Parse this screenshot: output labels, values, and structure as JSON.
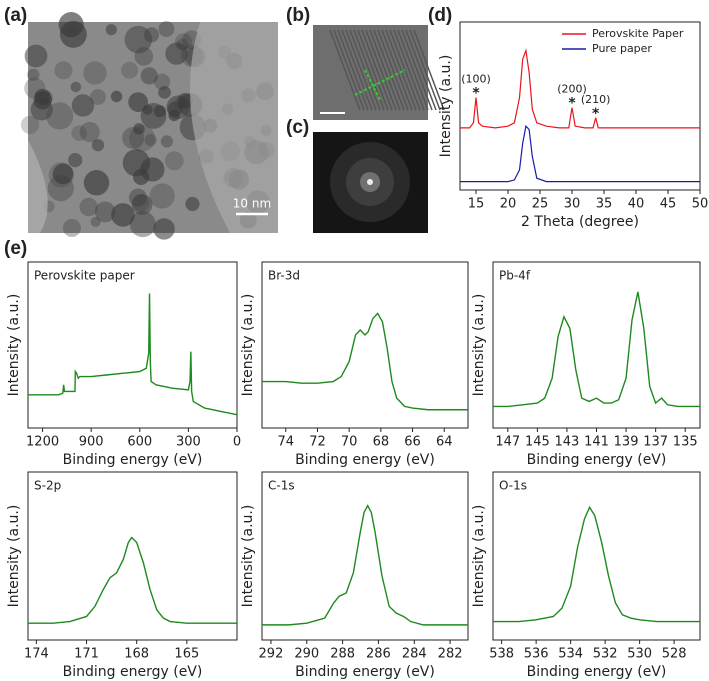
{
  "panel_labels": [
    "(a)",
    "(b)",
    "(c)",
    "(d)",
    "(e)"
  ],
  "scale_bar": "10 nm",
  "chart_data": [
    {
      "type": "line",
      "ylabel": "Intensity (a.u.)",
      "xlabel": "2 Theta (degree)",
      "xlim": [
        12.5,
        50
      ],
      "ylim": [
        0,
        100
      ],
      "xticks": [
        15,
        20,
        25,
        30,
        35,
        40,
        45,
        50
      ],
      "legend": "upper right",
      "x": [
        12.5,
        13,
        14,
        14.6,
        15,
        15.4,
        16,
        18,
        20,
        21,
        21.8,
        22.3,
        22.8,
        23.3,
        23.8,
        24.5,
        26,
        28,
        29.5,
        30,
        30.5,
        32,
        33.3,
        33.7,
        34.1,
        36,
        40,
        45,
        50
      ],
      "series": [
        {
          "name": "Perovskite Paper",
          "color": "#e8141c",
          "values": [
            37,
            37,
            37,
            40,
            55,
            40,
            38,
            37,
            38,
            40,
            55,
            78,
            83,
            70,
            48,
            40,
            38,
            37,
            37,
            49,
            38,
            37,
            37,
            43,
            37,
            37,
            37,
            37,
            37
          ]
        },
        {
          "name": "Pure paper",
          "color": "#1a1aa8",
          "values": [
            5,
            5,
            5,
            5,
            5,
            5,
            5,
            5,
            5,
            6,
            12,
            28,
            38,
            36,
            20,
            7,
            5,
            5,
            5,
            5,
            5,
            5,
            5,
            5,
            5,
            5,
            5,
            5,
            5
          ]
        }
      ],
      "annotations": [
        {
          "text": "(100)",
          "marker": "*",
          "x": 15,
          "y": 55
        },
        {
          "text": "(200)",
          "marker": "*",
          "x": 30,
          "y": 49
        },
        {
          "text": "(210)",
          "marker": "*",
          "x": 33.7,
          "y": 43
        }
      ]
    },
    {
      "type": "line",
      "title": "Perovskite paper",
      "ylabel": "Intensity (a.u.)",
      "xlabel": "Binding energy (eV)",
      "xlim": [
        1290,
        0
      ],
      "ylim": [
        0,
        100
      ],
      "xticks": [
        1200,
        900,
        600,
        300,
        0
      ],
      "color": "#1e8a1e",
      "x": [
        1290,
        1200,
        1100,
        1075,
        1070,
        1065,
        1000,
        998,
        990,
        980,
        970,
        900,
        800,
        700,
        600,
        560,
        545,
        540,
        535,
        530,
        500,
        400,
        300,
        290,
        285,
        280,
        270,
        200,
        150,
        100,
        50,
        0
      ],
      "values": [
        20,
        20,
        20,
        21,
        26,
        22,
        22,
        34,
        33,
        30,
        31,
        31,
        32,
        33,
        34,
        36,
        45,
        81,
        40,
        28,
        26,
        24,
        23,
        28,
        46,
        22,
        16,
        12,
        11,
        10,
        9,
        8
      ]
    },
    {
      "type": "line",
      "title": "Br-3d",
      "ylabel": "Intensity (a.u.)",
      "xlabel": "Binding energy (eV)",
      "xlim": [
        75.5,
        62.5
      ],
      "ylim": [
        0,
        100
      ],
      "xticks": [
        74,
        72,
        70,
        68,
        66,
        64
      ],
      "color": "#1e8a1e",
      "x": [
        75.5,
        74,
        73,
        72,
        71,
        70.5,
        70,
        69.6,
        69.3,
        69,
        68.8,
        68.5,
        68.2,
        67.9,
        67.6,
        67.3,
        67,
        66.5,
        66,
        65,
        64,
        62.5
      ],
      "values": [
        28,
        28,
        27,
        27,
        28,
        31,
        40,
        56,
        59,
        56,
        58,
        66,
        69,
        64,
        48,
        28,
        18,
        13,
        12,
        11,
        11,
        11
      ]
    },
    {
      "type": "line",
      "title": "Pb-4f",
      "ylabel": "Intensity (a.u.)",
      "xlabel": "Binding energy (eV)",
      "xlim": [
        148,
        134
      ],
      "ylim": [
        0,
        100
      ],
      "xticks": [
        147,
        145,
        143,
        141,
        139,
        137,
        135
      ],
      "color": "#1e8a1e",
      "x": [
        148,
        147,
        146,
        145,
        144.5,
        144,
        143.6,
        143.2,
        142.8,
        142.4,
        142,
        141.5,
        141,
        140.5,
        140,
        139.5,
        139,
        138.6,
        138.2,
        137.8,
        137.4,
        137,
        136.6,
        136.2,
        135.5,
        134
      ],
      "values": [
        13,
        13,
        14,
        15,
        18,
        30,
        55,
        67,
        60,
        35,
        18,
        16,
        18,
        15,
        15,
        17,
        30,
        65,
        82,
        60,
        25,
        15,
        18,
        14,
        13,
        13
      ]
    },
    {
      "type": "line",
      "title": "S-2p",
      "ylabel": "Intensity (a.u.)",
      "xlabel": "Binding energy (eV)",
      "xlim": [
        174.5,
        162
      ],
      "ylim": [
        0,
        100
      ],
      "xticks": [
        174,
        171,
        168,
        165
      ],
      "color": "#1e8a1e",
      "x": [
        174.5,
        173,
        172,
        171,
        170.5,
        170,
        169.6,
        169.2,
        168.8,
        168.5,
        168.3,
        168,
        167.6,
        167.2,
        166.8,
        166.4,
        166,
        165,
        163,
        162
      ],
      "values": [
        10,
        10,
        11,
        14,
        20,
        30,
        37,
        40,
        48,
        58,
        61,
        58,
        46,
        30,
        18,
        13,
        11,
        10,
        10,
        10
      ]
    },
    {
      "type": "line",
      "title": "C-1s",
      "ylabel": "Intensity (a.u.)",
      "xlabel": "Binding energy (eV)",
      "xlim": [
        292.5,
        281
      ],
      "ylim": [
        0,
        100
      ],
      "xticks": [
        292,
        290,
        288,
        286,
        284,
        282
      ],
      "color": "#1e8a1e",
      "x": [
        292.5,
        291,
        290,
        289,
        288.5,
        288.2,
        287.8,
        287.4,
        287,
        286.8,
        286.6,
        286.4,
        286.2,
        285.8,
        285.4,
        285,
        284.6,
        284.2,
        283.5,
        282,
        281
      ],
      "values": [
        9,
        9,
        10,
        13,
        22,
        26,
        28,
        40,
        65,
        76,
        80,
        76,
        65,
        38,
        20,
        16,
        14,
        11,
        9,
        9,
        9
      ]
    },
    {
      "type": "line",
      "title": "O-1s",
      "ylabel": "Intensity (a.u.)",
      "xlabel": "Binding energy (eV)",
      "xlim": [
        538.5,
        526.5
      ],
      "ylim": [
        0,
        100
      ],
      "xticks": [
        538,
        536,
        534,
        532,
        530,
        528
      ],
      "color": "#1e8a1e",
      "x": [
        538.5,
        537,
        536,
        535,
        534.5,
        534,
        533.6,
        533.2,
        532.9,
        532.6,
        532.2,
        531.8,
        531.4,
        531,
        530.5,
        530,
        529,
        528,
        526.5
      ],
      "values": [
        11,
        11,
        12,
        14,
        19,
        32,
        55,
        72,
        79,
        74,
        58,
        38,
        22,
        15,
        13,
        12,
        11,
        11,
        11
      ]
    }
  ]
}
